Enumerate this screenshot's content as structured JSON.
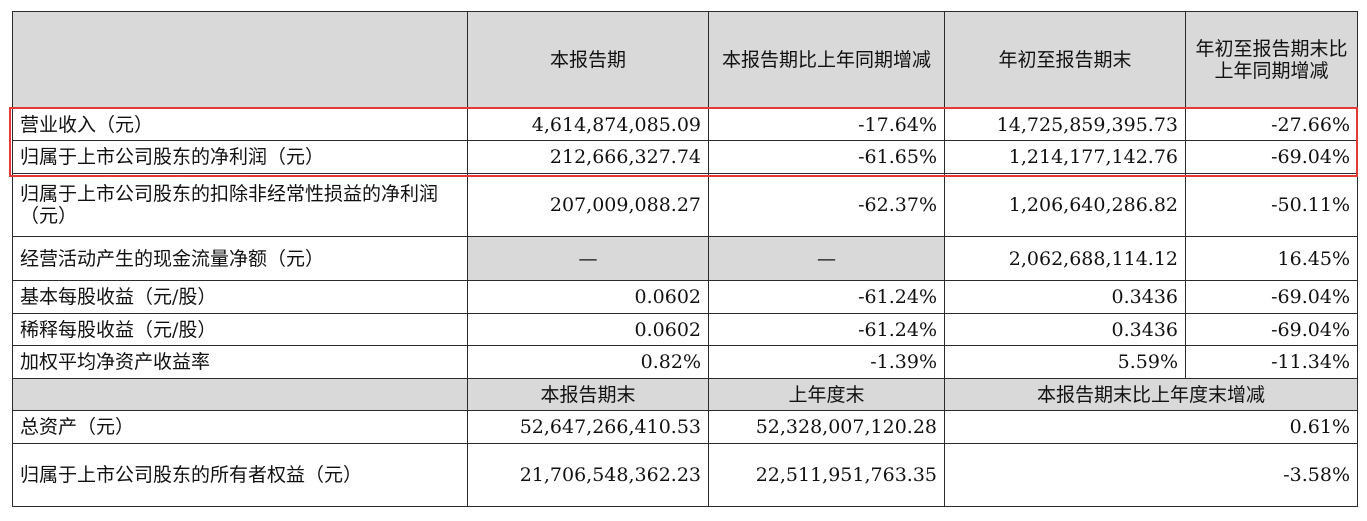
{
  "header": {
    "col1": "本报告期",
    "col2": "本报告期比上年同期增减",
    "col3": "年初至报告期末",
    "col4": "年初至报告期末比上年同期增减"
  },
  "rows": [
    {
      "label": "营业收入（元）",
      "v1": "4,614,874,085.09",
      "v2": "-17.64%",
      "v3": "14,725,859,395.73",
      "v4": "-27.66%"
    },
    {
      "label": "归属于上市公司股东的净利润（元）",
      "v1": "212,666,327.74",
      "v2": "-61.65%",
      "v3": "1,214,177,142.76",
      "v4": "-69.04%"
    },
    {
      "label": "归属于上市公司股东的扣除非经常性损益的净利润（元）",
      "v1": "207,009,088.27",
      "v2": "-62.37%",
      "v3": "1,206,640,286.82",
      "v4": "-50.11%"
    },
    {
      "label": "经营活动产生的现金流量净额（元）",
      "v1": "—",
      "v2": "—",
      "v3": "2,062,688,114.12",
      "v4": "16.45%"
    },
    {
      "label": "基本每股收益（元/股）",
      "v1": "0.0602",
      "v2": "-61.24%",
      "v3": "0.3436",
      "v4": "-69.04%"
    },
    {
      "label": "稀释每股收益（元/股）",
      "v1": "0.0602",
      "v2": "-61.24%",
      "v3": "0.3436",
      "v4": "-69.04%"
    },
    {
      "label": "加权平均净资产收益率",
      "v1": "0.82%",
      "v2": "-1.39%",
      "v3": "5.59%",
      "v4": "-11.34%"
    }
  ],
  "header2": {
    "col1": "本报告期末",
    "col2": "上年度末",
    "col3": "本报告期末比上年度末增减"
  },
  "rows2": [
    {
      "label": "总资产（元）",
      "v1": "52,647,266,410.53",
      "v2": "52,328,007,120.28",
      "v3": "0.61%"
    },
    {
      "label": "归属于上市公司股东的所有者权益（元）",
      "v1": "21,706,548,362.23",
      "v2": "22,511,951,763.35",
      "v3": "-3.58%"
    }
  ],
  "colors": {
    "highlight": "#e53935",
    "header_bg": "#d9d9d9"
  }
}
